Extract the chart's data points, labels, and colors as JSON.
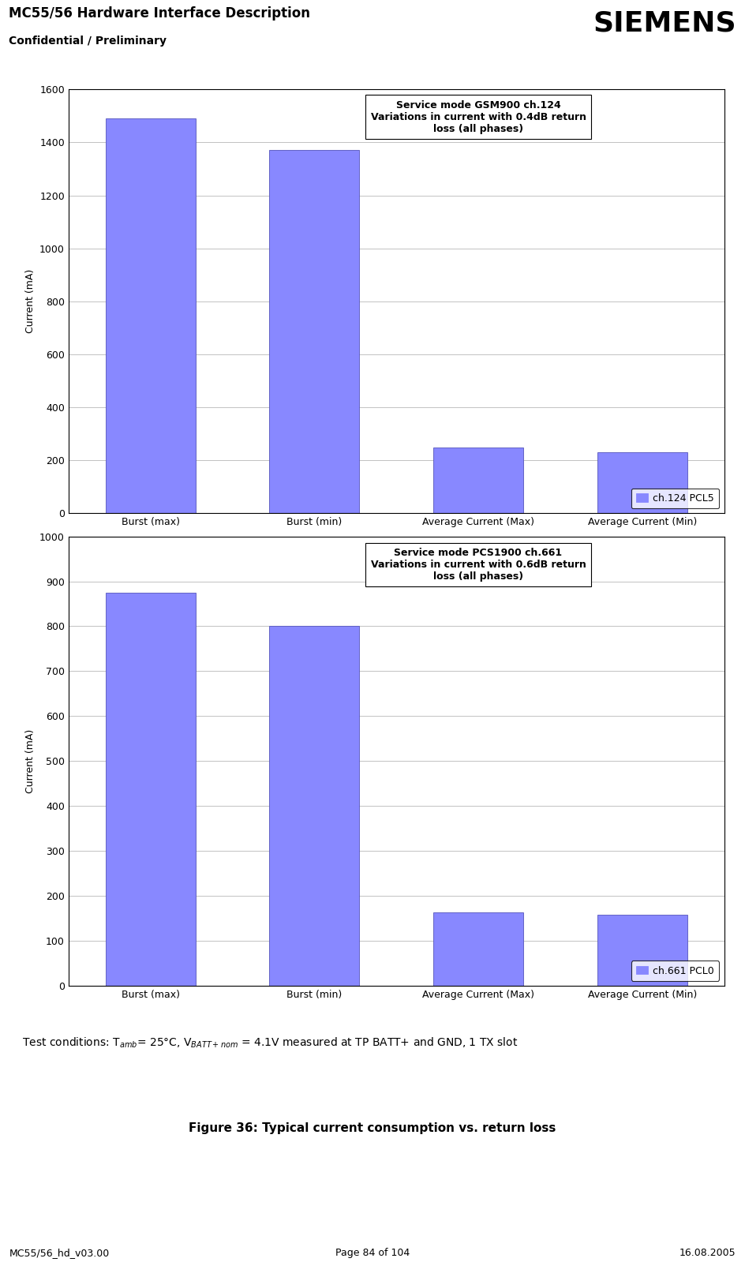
{
  "header_title": "MC55/56 Hardware Interface Description",
  "header_subtitle": "Confidential / Preliminary",
  "header_logo": "SIEMENS",
  "footer_left": "MC55/56_hd_v03.00",
  "footer_center": "Page 84 of 104",
  "footer_right": "16.08.2005",
  "chart1": {
    "categories": [
      "Burst (max)",
      "Burst (min)",
      "Average Current (Max)",
      "Average Current (Min)"
    ],
    "values": [
      1490,
      1370,
      250,
      230
    ],
    "ylim": [
      0,
      1600
    ],
    "yticks": [
      0,
      200,
      400,
      600,
      800,
      1000,
      1200,
      1400,
      1600
    ],
    "ylabel": "Current (mA)",
    "bar_color": "#8888ff",
    "bar_edge_color": "#5555bb",
    "annotation_line1": "Service mode GSM900 ch.124",
    "annotation_line2": "Variations in current with 0.4dB return",
    "annotation_line3": "loss (all phases)",
    "legend_label": "ch.124 PCL5"
  },
  "chart2": {
    "categories": [
      "Burst (max)",
      "Burst (min)",
      "Average Current (Max)",
      "Average Current (Min)"
    ],
    "values": [
      875,
      800,
      163,
      158
    ],
    "ylim": [
      0,
      1000
    ],
    "yticks": [
      0,
      100,
      200,
      300,
      400,
      500,
      600,
      700,
      800,
      900,
      1000
    ],
    "ylabel": "Current (mA)",
    "bar_color": "#8888ff",
    "bar_edge_color": "#5555bb",
    "annotation_line1": "Service mode PCS1900 ch.661",
    "annotation_line2": "Variations in current with 0.6dB return",
    "annotation_line3": "loss (all phases)",
    "legend_label": "ch.661 PCL0"
  },
  "test_conditions": "Test conditions: T$_{amb}$= 25°C, V$_{BATT+ nom}$ = 4.1V measured at TP BATT+ and GND, 1 TX slot",
  "figure_caption": "Figure 36: Typical current consumption vs. return loss",
  "bg_color": "#ffffff",
  "header_bar_color": "#aaaaaa",
  "grid_color": "#aaaaaa",
  "fig_width": 9.44,
  "fig_height": 16.18,
  "dpi": 100
}
